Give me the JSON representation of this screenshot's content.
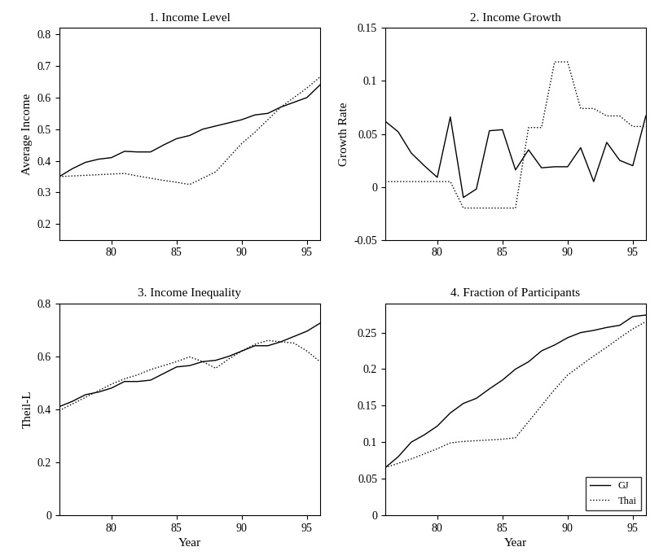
{
  "chart_data": [
    {
      "type": "line",
      "title": "1. Income Level",
      "y_label": "Average Income",
      "x": [
        76,
        77,
        78,
        79,
        80,
        81,
        82,
        83,
        84,
        85,
        86,
        87,
        88,
        89,
        90,
        91,
        92,
        93,
        94,
        95,
        96
      ],
      "series": [
        {
          "name": "GJ",
          "color": "#000000",
          "line_style": "solid",
          "values": [
            0.35,
            0.375,
            0.395,
            0.405,
            0.41,
            0.43,
            0.428,
            0.428,
            0.45,
            0.47,
            0.48,
            0.5,
            0.51,
            0.52,
            0.53,
            0.545,
            0.55,
            0.57,
            0.585,
            0.6,
            0.64
          ]
        },
        {
          "name": "Thai",
          "color": "#000000",
          "line_style": "dotted",
          "values": [
            0.35,
            0.352,
            0.354,
            0.356,
            0.358,
            0.36,
            0.352,
            0.345,
            0.338,
            0.332,
            0.325,
            0.345,
            0.365,
            0.41,
            0.455,
            0.49,
            0.53,
            0.57,
            0.6,
            0.63,
            0.665
          ]
        }
      ],
      "xlim": [
        76,
        96
      ],
      "xticks": [
        80,
        85,
        90,
        95
      ],
      "ylim": [
        0.15,
        0.82
      ],
      "yticks": [
        0.2,
        0.3,
        0.4,
        0.5,
        0.6,
        0.7,
        0.8
      ]
    },
    {
      "type": "line",
      "title": "2. Income Growth",
      "y_label": "Growth Rate",
      "x": [
        76,
        77,
        78,
        79,
        80,
        81,
        82,
        83,
        84,
        85,
        86,
        87,
        88,
        89,
        90,
        91,
        92,
        93,
        94,
        95,
        96
      ],
      "series": [
        {
          "name": "GJ",
          "color": "#000000",
          "line_style": "solid",
          "values": [
            0.062,
            0.052,
            0.032,
            0.02,
            0.009,
            0.066,
            -0.01,
            -0.002,
            0.053,
            0.054,
            0.016,
            0.035,
            0.018,
            0.019,
            0.019,
            0.037,
            0.005,
            0.042,
            0.025,
            0.02,
            0.067
          ]
        },
        {
          "name": "Thai",
          "color": "#000000",
          "line_style": "dotted",
          "values": [
            0.005,
            0.005,
            0.005,
            0.005,
            0.005,
            0.005,
            -0.02,
            -0.02,
            -0.02,
            -0.02,
            -0.02,
            0.056,
            0.056,
            0.118,
            0.118,
            0.074,
            0.074,
            0.067,
            0.067,
            0.057,
            0.057
          ]
        }
      ],
      "xlim": [
        76,
        96
      ],
      "xticks": [
        80,
        85,
        90,
        95
      ],
      "ylim": [
        -0.05,
        0.15
      ],
      "yticks": [
        -0.05,
        0,
        0.05,
        0.1,
        0.15
      ]
    },
    {
      "type": "line",
      "title": "3. Income Inequality",
      "y_label": "Theil-L",
      "x_label": "Year",
      "x": [
        76,
        77,
        78,
        79,
        80,
        81,
        82,
        83,
        84,
        85,
        86,
        87,
        88,
        89,
        90,
        91,
        92,
        93,
        94,
        95,
        96
      ],
      "series": [
        {
          "name": "GJ",
          "color": "#000000",
          "line_style": "solid",
          "values": [
            0.41,
            0.43,
            0.455,
            0.465,
            0.48,
            0.505,
            0.505,
            0.51,
            0.535,
            0.56,
            0.565,
            0.58,
            0.585,
            0.6,
            0.62,
            0.64,
            0.64,
            0.655,
            0.675,
            0.695,
            0.725
          ]
        },
        {
          "name": "Thai",
          "color": "#000000",
          "line_style": "dotted",
          "values": [
            0.395,
            0.42,
            0.445,
            0.47,
            0.495,
            0.515,
            0.53,
            0.55,
            0.565,
            0.58,
            0.598,
            0.58,
            0.555,
            0.59,
            0.62,
            0.645,
            0.66,
            0.655,
            0.65,
            0.62,
            0.58
          ]
        }
      ],
      "xlim": [
        76,
        96
      ],
      "xticks": [
        80,
        85,
        90,
        95
      ],
      "ylim": [
        0,
        0.8
      ],
      "yticks": [
        0,
        0.2,
        0.4,
        0.6,
        0.8
      ]
    },
    {
      "type": "line",
      "title": "4. Fraction of Participants",
      "x_label": "Year",
      "legend": "lower right",
      "x": [
        76,
        77,
        78,
        79,
        80,
        81,
        82,
        83,
        84,
        85,
        86,
        87,
        88,
        89,
        90,
        91,
        92,
        93,
        94,
        95,
        96
      ],
      "series": [
        {
          "name": "GJ",
          "color": "#000000",
          "line_style": "solid",
          "values": [
            0.065,
            0.08,
            0.1,
            0.11,
            0.122,
            0.14,
            0.153,
            0.16,
            0.173,
            0.185,
            0.2,
            0.21,
            0.225,
            0.233,
            0.243,
            0.25,
            0.253,
            0.257,
            0.26,
            0.272,
            0.274
          ]
        },
        {
          "name": "Thai",
          "color": "#000000",
          "line_style": "dotted",
          "values": [
            0.065,
            0.071,
            0.077,
            0.084,
            0.091,
            0.099,
            0.101,
            0.102,
            0.103,
            0.104,
            0.106,
            0.128,
            0.15,
            0.172,
            0.192,
            0.205,
            0.218,
            0.23,
            0.243,
            0.255,
            0.265
          ]
        }
      ],
      "xlim": [
        76,
        96
      ],
      "xticks": [
        80,
        85,
        90,
        95
      ],
      "ylim": [
        0,
        0.29
      ],
      "yticks": [
        0,
        0.05,
        0.1,
        0.15,
        0.2,
        0.25
      ]
    }
  ]
}
